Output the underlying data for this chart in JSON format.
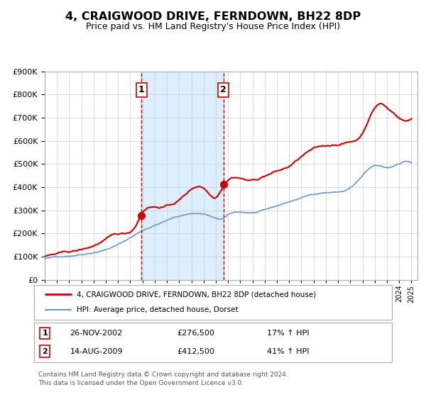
{
  "title": "4, CRAIGWOOD DRIVE, FERNDOWN, BH22 8DP",
  "subtitle": "Price paid vs. HM Land Registry's House Price Index (HPI)",
  "bg_color": "#ffffff",
  "plot_bg_color": "#ffffff",
  "grid_color": "#cccccc",
  "shade_color": "#ddeeff",
  "red_line_color": "#cc0000",
  "blue_line_color": "#6699cc",
  "vline_color": "#cc0000",
  "marker_color": "#cc0000",
  "purchase1_date": 2002.91,
  "purchase1_price": 276500,
  "purchase2_date": 2009.62,
  "purchase2_price": 412500,
  "legend_line1": "4, CRAIGWOOD DRIVE, FERNDOWN, BH22 8DP (detached house)",
  "legend_line2": "HPI: Average price, detached house, Dorset",
  "table_row1": [
    "1",
    "26-NOV-2002",
    "£276,500",
    "17% ↑ HPI"
  ],
  "table_row2": [
    "2",
    "14-AUG-2009",
    "£412,500",
    "41% ↑ HPI"
  ],
  "footer1": "Contains HM Land Registry data © Crown copyright and database right 2024.",
  "footer2": "This data is licensed under the Open Government Licence v3.0.",
  "ylim_max": 900000,
  "ylim_min": 0,
  "xmin": 1995.0,
  "xmax": 2025.5,
  "hpi_key_years": [
    1995,
    1997,
    1999,
    2001,
    2003,
    2005,
    2007,
    2008.5,
    2009.5,
    2010,
    2012,
    2014,
    2016,
    2018,
    2020,
    2021,
    2022,
    2023,
    2024,
    2025
  ],
  "hpi_key_values": [
    92000,
    105000,
    125000,
    160000,
    220000,
    265000,
    295000,
    285000,
    270000,
    285000,
    295000,
    320000,
    355000,
    380000,
    400000,
    450000,
    490000,
    480000,
    500000,
    505000
  ],
  "prop_key_years": [
    1995,
    1997,
    1999,
    2001,
    2002.5,
    2002.91,
    2004,
    2006,
    2007.5,
    2008.0,
    2009.0,
    2009.62,
    2010,
    2011,
    2012,
    2013,
    2014,
    2015,
    2016,
    2017,
    2018,
    2019,
    2020,
    2021,
    2021.5,
    2022,
    2022.5,
    2023,
    2023.5,
    2024,
    2025
  ],
  "prop_key_values": [
    100000,
    115000,
    140000,
    185000,
    230000,
    276500,
    310000,
    340000,
    400000,
    395000,
    360000,
    412500,
    440000,
    450000,
    440000,
    460000,
    480000,
    500000,
    540000,
    570000,
    580000,
    590000,
    600000,
    640000,
    700000,
    750000,
    770000,
    750000,
    730000,
    710000,
    705000
  ]
}
